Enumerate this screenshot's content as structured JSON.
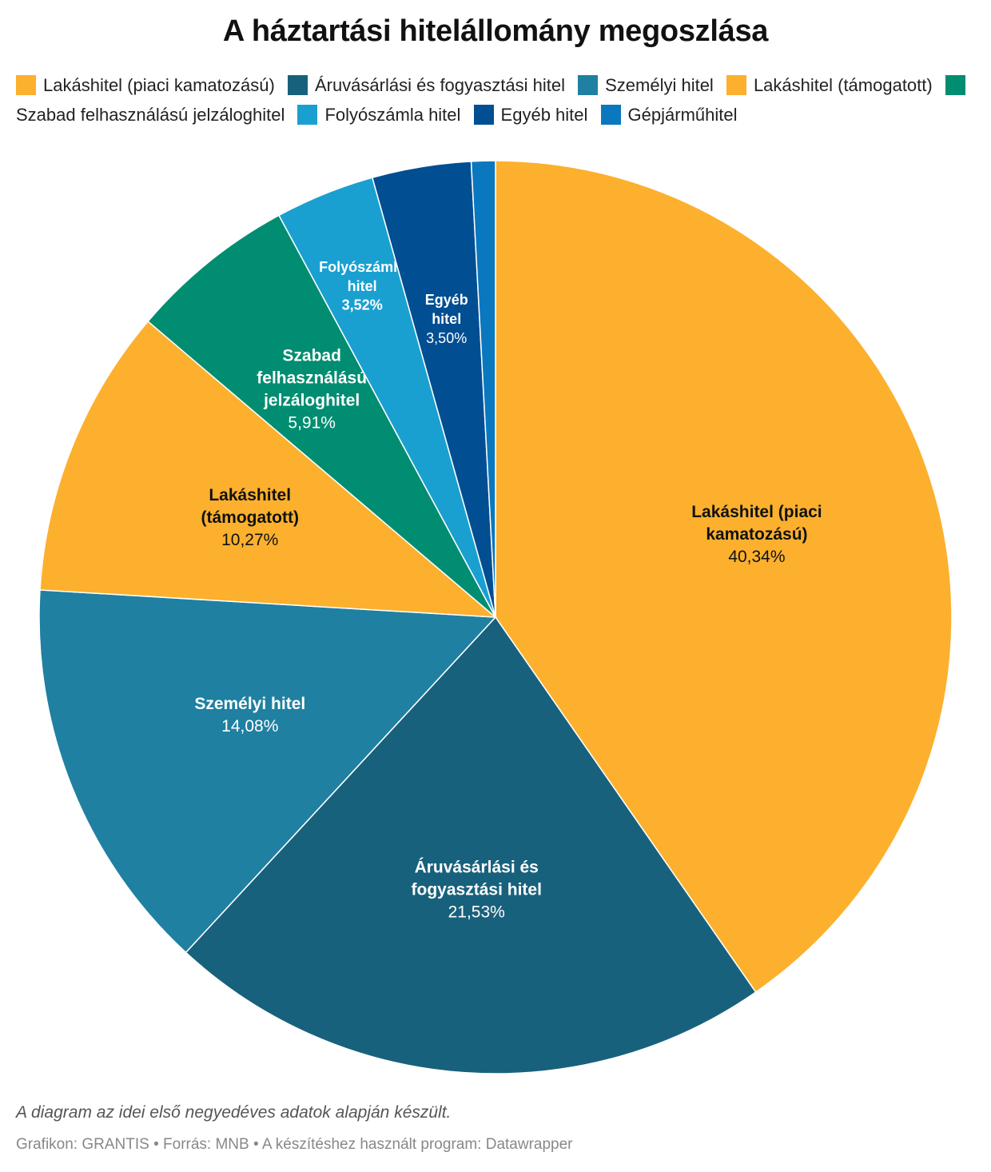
{
  "title": "A háztartási hitelállomány megoszlása",
  "notes": "A diagram az idei első negyedéves adatok alapján készült.",
  "source": "Grafikon: GRANTIS • Forrás: MNB • A készítéshez használt program: Datawrapper",
  "chart_data": {
    "type": "pie",
    "legend_position": "top",
    "slices": [
      {
        "name": "Lakáshitel (piaci kamatozású)",
        "value": 40.34,
        "value_label": "40,34%",
        "label_lines": [
          "Lakáshitel (piaci",
          "kamatozású)"
        ],
        "color": "#fcb02e",
        "label_color": "#111111"
      },
      {
        "name": "Áruvásárlási és fogyasztási hitel",
        "value": 21.53,
        "value_label": "21,53%",
        "label_lines": [
          "Áruvásárlási és",
          "fogyasztási hitel"
        ],
        "color": "#18617c",
        "label_color": "#ffffff"
      },
      {
        "name": "Személyi hitel",
        "value": 14.08,
        "value_label": "14,08%",
        "label_lines": [
          "Személyi hitel"
        ],
        "color": "#1f80a1",
        "label_color": "#ffffff"
      },
      {
        "name": "Lakáshitel (támogatott)",
        "value": 10.27,
        "value_label": "10,27%",
        "label_lines": [
          "Lakáshitel",
          "(támogatott)"
        ],
        "color": "#fcb02e",
        "label_color": "#111111"
      },
      {
        "name": "Szabad felhasználású jelzáloghitel",
        "value": 5.91,
        "value_label": "5,91%",
        "label_lines": [
          "Szabad",
          "felhasználású",
          "jelzáloghitel"
        ],
        "color": "#008d71",
        "label_color": "#ffffff"
      },
      {
        "name": "Folyószámla hitel",
        "value": 3.52,
        "value_label": "3,52%",
        "label_lines": [
          "Folyószámla",
          "hitel"
        ],
        "color": "#19a0d1",
        "label_color": "#ffffff"
      },
      {
        "name": "Egyéb hitel",
        "value": 3.5,
        "value_label": "3,50%",
        "label_lines": [
          "Egyéb",
          "hitel"
        ],
        "color": "#024e92",
        "label_color": "#ffffff"
      },
      {
        "name": "Gépjárműhitel",
        "value": 0.85,
        "value_label": "",
        "label_lines": [],
        "color": "#0a78bf",
        "label_color": "#ffffff"
      }
    ]
  }
}
